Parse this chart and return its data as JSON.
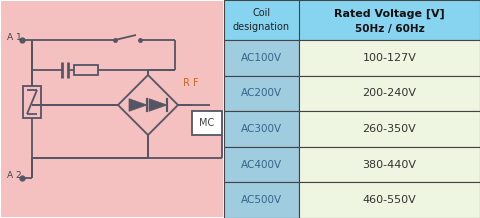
{
  "bg_color": "#f5c0c0",
  "table_header_bg": "#87d4f0",
  "table_row_bg_left": "#a0cce0",
  "table_row_bg_right": "#eef5e0",
  "table_border_color": "#444444",
  "circuit_line_color": "#555566",
  "label_color": "#444444",
  "rf_color": "#cc6622",
  "mc_border_color": "#555566",
  "coil_designations": [
    "AC100V",
    "AC200V",
    "AC300V",
    "AC400V",
    "AC500V"
  ],
  "rated_voltages": [
    "100-127V",
    "200-240V",
    "260-350V",
    "380-440V",
    "460-550V"
  ],
  "header_col1": "Coil\ndesignation",
  "header_col2": "Rated Voltage [V]\n50Hz / 60Hz",
  "label_A1": "A 1",
  "label_A2": "A 2",
  "label_RF": "R F",
  "label_MC": "MC",
  "fig_w": 4.81,
  "fig_h": 2.18,
  "dpi": 100
}
